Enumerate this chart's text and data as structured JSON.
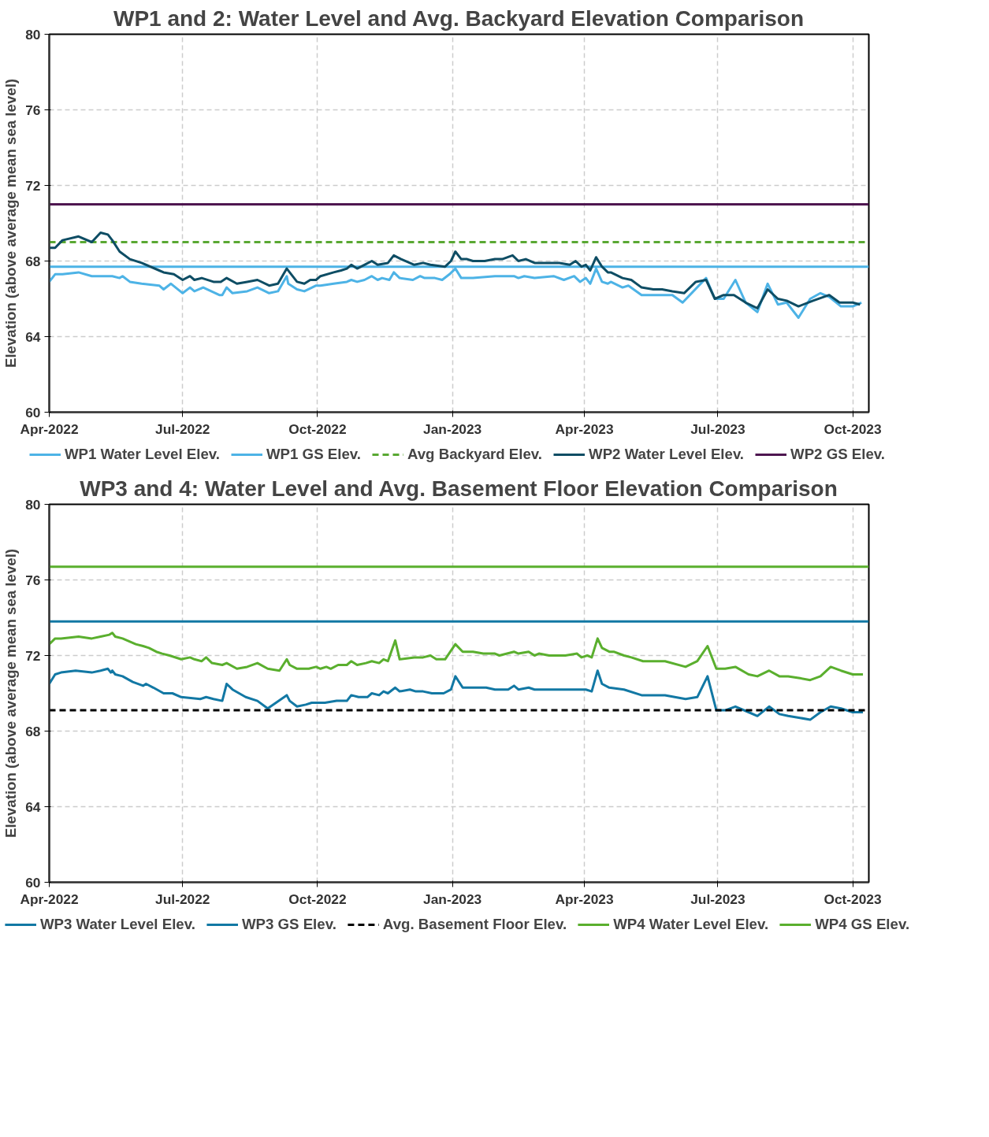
{
  "chart_data": [
    {
      "type": "line",
      "title": "WP1 and 2: Water Level and Avg. Backyard Elevation Comparison",
      "ylabel": "Elevation (above average mean sea level)",
      "xlim": [
        "2022-04-01",
        "2023-10-12"
      ],
      "ylim": [
        60,
        80
      ],
      "yticks": [
        60,
        64,
        68,
        72,
        76,
        80
      ],
      "xticks": [
        {
          "value": "2022-04-01",
          "label": "Apr-2022"
        },
        {
          "value": "2022-07-01",
          "label": "Jul-2022"
        },
        {
          "value": "2022-10-01",
          "label": "Oct-2022"
        },
        {
          "value": "2023-01-01",
          "label": "Jan-2023"
        },
        {
          "value": "2023-04-01",
          "label": "Apr-2023"
        },
        {
          "value": "2023-07-01",
          "label": "Jul-2023"
        },
        {
          "value": "2023-10-01",
          "label": "Oct-2023"
        }
      ],
      "grid": true,
      "legend": "bottom",
      "marker": "none",
      "line_style": "solid",
      "series": [
        {
          "name": "WP1 Water Level Elev.",
          "color": "#4db3e6",
          "x": [
            "2022-04-01",
            "2022-04-05",
            "2022-04-10",
            "2022-04-21",
            "2022-04-30",
            "2022-05-11",
            "2022-05-14",
            "2022-05-19",
            "2022-05-21",
            "2022-05-26",
            "2022-06-03",
            "2022-06-15",
            "2022-06-18",
            "2022-06-23",
            "2022-07-01",
            "2022-07-06",
            "2022-07-09",
            "2022-07-15",
            "2022-07-26",
            "2022-07-28",
            "2022-07-31",
            "2022-08-04",
            "2022-08-14",
            "2022-08-21",
            "2022-08-29",
            "2022-09-04",
            "2022-09-10",
            "2022-09-11",
            "2022-09-17",
            "2022-09-22",
            "2022-09-30",
            "2022-10-03",
            "2022-10-12",
            "2022-10-21",
            "2022-10-24",
            "2022-10-28",
            "2022-11-02",
            "2022-11-07",
            "2022-11-11",
            "2022-11-14",
            "2022-11-19",
            "2022-11-22",
            "2022-11-26",
            "2022-12-05",
            "2022-12-10",
            "2022-12-13",
            "2022-12-20",
            "2022-12-25",
            "2022-12-30",
            "2023-01-03",
            "2023-01-07",
            "2023-01-15",
            "2023-01-30",
            "2023-02-07",
            "2023-02-12",
            "2023-02-15",
            "2023-02-19",
            "2023-02-26",
            "2023-03-11",
            "2023-03-18",
            "2023-03-25",
            "2023-03-29",
            "2023-04-02",
            "2023-04-05",
            "2023-04-09",
            "2023-04-13",
            "2023-04-17",
            "2023-04-19",
            "2023-04-27",
            "2023-05-01",
            "2023-05-10",
            "2023-05-24",
            "2023-05-31",
            "2023-06-07",
            "2023-06-23",
            "2023-06-29",
            "2023-07-05",
            "2023-07-13",
            "2023-07-20",
            "2023-07-28",
            "2023-08-04",
            "2023-08-11",
            "2023-08-17",
            "2023-08-25",
            "2023-09-02",
            "2023-09-09",
            "2023-09-15",
            "2023-09-23",
            "2023-10-01",
            "2023-10-07"
          ],
          "values": [
            66.9,
            67.3,
            67.3,
            67.4,
            67.2,
            67.2,
            67.2,
            67.1,
            67.2,
            66.9,
            66.8,
            66.7,
            66.5,
            66.8,
            66.3,
            66.6,
            66.4,
            66.6,
            66.2,
            66.2,
            66.6,
            66.3,
            66.4,
            66.6,
            66.3,
            66.4,
            67.2,
            66.8,
            66.5,
            66.4,
            66.7,
            66.7,
            66.8,
            66.9,
            67.0,
            66.9,
            67.0,
            67.2,
            67.0,
            67.1,
            67.0,
            67.4,
            67.1,
            67.0,
            67.2,
            67.1,
            67.1,
            67.0,
            67.3,
            67.6,
            67.1,
            67.1,
            67.2,
            67.2,
            67.2,
            67.1,
            67.2,
            67.1,
            67.2,
            67.0,
            67.2,
            66.9,
            67.1,
            66.8,
            67.6,
            66.9,
            66.8,
            66.9,
            66.6,
            66.7,
            66.2,
            66.2,
            66.2,
            65.8,
            67.1,
            66.0,
            66.0,
            67.0,
            65.8,
            65.3,
            66.8,
            65.7,
            65.8,
            65.0,
            66.0,
            66.3,
            66.1,
            65.6,
            65.6,
            65.8
          ]
        },
        {
          "name": "WP1 GS Elev.",
          "color": "#4db3e6",
          "x": [
            "2022-04-01",
            "2023-10-12"
          ],
          "values": [
            67.7,
            67.7
          ]
        },
        {
          "name": "Avg Backyard Elev.",
          "color": "#59a832",
          "line_style": "dashed",
          "x": [
            "2022-04-01",
            "2023-10-12"
          ],
          "values": [
            69.0,
            69.0
          ]
        },
        {
          "name": "WP2 Water Level Elev.",
          "color": "#0e4d64",
          "x": [
            "2022-04-01",
            "2022-04-05",
            "2022-04-10",
            "2022-04-21",
            "2022-04-30",
            "2022-05-06",
            "2022-05-11",
            "2022-05-14",
            "2022-05-19",
            "2022-05-26",
            "2022-06-03",
            "2022-06-15",
            "2022-06-18",
            "2022-06-25",
            "2022-07-01",
            "2022-07-06",
            "2022-07-09",
            "2022-07-14",
            "2022-07-22",
            "2022-07-27",
            "2022-07-31",
            "2022-08-07",
            "2022-08-14",
            "2022-08-21",
            "2022-08-29",
            "2022-09-04",
            "2022-09-10",
            "2022-09-17",
            "2022-09-22",
            "2022-09-26",
            "2022-09-30",
            "2022-10-03",
            "2022-10-12",
            "2022-10-17",
            "2022-10-21",
            "2022-10-24",
            "2022-10-28",
            "2022-11-02",
            "2022-11-07",
            "2022-11-11",
            "2022-11-18",
            "2022-11-22",
            "2022-11-27",
            "2022-12-06",
            "2022-12-12",
            "2022-12-17",
            "2022-12-27",
            "2022-12-31",
            "2023-01-03",
            "2023-01-07",
            "2023-01-11",
            "2023-01-15",
            "2023-01-23",
            "2023-01-30",
            "2023-02-04",
            "2023-02-11",
            "2023-02-15",
            "2023-02-20",
            "2023-02-26",
            "2023-03-10",
            "2023-03-15",
            "2023-03-22",
            "2023-03-26",
            "2023-03-30",
            "2023-04-02",
            "2023-04-05",
            "2023-04-09",
            "2023-04-13",
            "2023-04-17",
            "2023-04-19",
            "2023-04-27",
            "2023-05-03",
            "2023-05-10",
            "2023-05-18",
            "2023-05-24",
            "2023-05-31",
            "2023-06-08",
            "2023-06-16",
            "2023-06-23",
            "2023-06-29",
            "2023-07-05",
            "2023-07-12",
            "2023-07-20",
            "2023-07-28",
            "2023-08-04",
            "2023-08-11",
            "2023-08-17",
            "2023-08-25",
            "2023-09-04",
            "2023-09-15",
            "2023-09-22",
            "2023-10-01",
            "2023-10-06"
          ],
          "values": [
            68.7,
            68.7,
            69.1,
            69.3,
            69.0,
            69.5,
            69.4,
            69.1,
            68.5,
            68.1,
            67.9,
            67.5,
            67.4,
            67.3,
            67.0,
            67.2,
            67.0,
            67.1,
            66.9,
            66.9,
            67.1,
            66.8,
            66.9,
            67.0,
            66.7,
            66.8,
            67.6,
            66.9,
            66.8,
            67.0,
            67.0,
            67.2,
            67.4,
            67.5,
            67.6,
            67.8,
            67.6,
            67.8,
            68.0,
            67.8,
            67.9,
            68.3,
            68.1,
            67.8,
            67.9,
            67.8,
            67.7,
            68.0,
            68.5,
            68.1,
            68.1,
            68.0,
            68.0,
            68.1,
            68.1,
            68.3,
            68.0,
            68.1,
            67.9,
            67.9,
            67.9,
            67.8,
            68.0,
            67.7,
            67.8,
            67.5,
            68.2,
            67.7,
            67.4,
            67.4,
            67.1,
            67.0,
            66.6,
            66.5,
            66.5,
            66.4,
            66.3,
            66.9,
            67.0,
            66.0,
            66.2,
            66.2,
            65.8,
            65.5,
            66.5,
            66.0,
            65.9,
            65.6,
            65.9,
            66.2,
            65.8,
            65.8,
            65.7
          ]
        },
        {
          "name": "WP2 GS Elev.",
          "color": "#4e1650",
          "x": [
            "2022-04-01",
            "2023-10-12"
          ],
          "values": [
            71.0,
            71.0
          ]
        }
      ]
    },
    {
      "type": "line",
      "title": "WP3 and 4: Water Level and Avg. Basement Floor Elevation Comparison",
      "ylabel": "Elevation (above average mean sea level)",
      "xlim": [
        "2022-04-01",
        "2023-10-12"
      ],
      "ylim": [
        60,
        80
      ],
      "yticks": [
        60,
        64,
        68,
        72,
        76,
        80
      ],
      "xticks": [
        {
          "value": "2022-04-01",
          "label": "Apr-2022"
        },
        {
          "value": "2022-07-01",
          "label": "Jul-2022"
        },
        {
          "value": "2022-10-01",
          "label": "Oct-2022"
        },
        {
          "value": "2023-01-01",
          "label": "Jan-2023"
        },
        {
          "value": "2023-04-01",
          "label": "Apr-2023"
        },
        {
          "value": "2023-07-01",
          "label": "Jul-2023"
        },
        {
          "value": "2023-10-01",
          "label": "Oct-2023"
        }
      ],
      "grid": true,
      "legend": "bottom",
      "marker": "none",
      "line_style": "solid",
      "series": [
        {
          "name": "WP3 Water Level Elev.",
          "color": "#1278a4",
          "x": [
            "2022-04-01",
            "2022-04-05",
            "2022-04-09",
            "2022-04-19",
            "2022-04-30",
            "2022-05-06",
            "2022-05-11",
            "2022-05-13",
            "2022-05-14",
            "2022-05-16",
            "2022-05-21",
            "2022-05-28",
            "2022-06-04",
            "2022-06-06",
            "2022-06-11",
            "2022-06-18",
            "2022-06-24",
            "2022-06-30",
            "2022-07-13",
            "2022-07-17",
            "2022-07-22",
            "2022-07-28",
            "2022-07-31",
            "2022-08-04",
            "2022-08-13",
            "2022-08-21",
            "2022-08-28",
            "2022-09-10",
            "2022-09-12",
            "2022-09-17",
            "2022-09-23",
            "2022-09-27",
            "2022-10-06",
            "2022-10-14",
            "2022-10-21",
            "2022-10-24",
            "2022-10-29",
            "2022-11-04",
            "2022-11-07",
            "2022-11-12",
            "2022-11-15",
            "2022-11-18",
            "2022-11-23",
            "2022-11-26",
            "2022-12-03",
            "2022-12-07",
            "2022-12-12",
            "2022-12-18",
            "2022-12-26",
            "2022-12-31",
            "2023-01-03",
            "2023-01-08",
            "2023-01-15",
            "2023-01-24",
            "2023-01-30",
            "2023-02-08",
            "2023-02-12",
            "2023-02-15",
            "2023-02-22",
            "2023-02-26",
            "2023-03-05",
            "2023-03-20",
            "2023-04-02",
            "2023-04-06",
            "2023-04-10",
            "2023-04-13",
            "2023-04-18",
            "2023-04-28",
            "2023-05-10",
            "2023-05-19",
            "2023-05-26",
            "2023-06-09",
            "2023-06-17",
            "2023-06-24",
            "2023-06-30",
            "2023-07-06",
            "2023-07-13",
            "2023-07-22",
            "2023-07-28",
            "2023-08-05",
            "2023-08-12",
            "2023-08-18",
            "2023-08-26",
            "2023-09-02",
            "2023-09-09",
            "2023-09-16",
            "2023-09-23",
            "2023-10-01",
            "2023-10-08"
          ],
          "values": [
            70.5,
            71.0,
            71.1,
            71.2,
            71.1,
            71.2,
            71.3,
            71.1,
            71.2,
            71.0,
            70.9,
            70.6,
            70.4,
            70.5,
            70.3,
            70.0,
            70.0,
            69.8,
            69.7,
            69.8,
            69.7,
            69.6,
            70.5,
            70.2,
            69.8,
            69.6,
            69.2,
            69.9,
            69.6,
            69.3,
            69.4,
            69.5,
            69.5,
            69.6,
            69.6,
            69.9,
            69.8,
            69.8,
            70.0,
            69.9,
            70.1,
            70.0,
            70.3,
            70.1,
            70.2,
            70.1,
            70.1,
            70.0,
            70.0,
            70.2,
            70.9,
            70.3,
            70.3,
            70.3,
            70.2,
            70.2,
            70.4,
            70.2,
            70.3,
            70.2,
            70.2,
            70.2,
            70.2,
            70.1,
            71.2,
            70.5,
            70.3,
            70.2,
            69.9,
            69.9,
            69.9,
            69.7,
            69.8,
            70.9,
            69.1,
            69.1,
            69.3,
            69.0,
            68.8,
            69.3,
            68.9,
            68.8,
            68.7,
            68.6,
            69.0,
            69.3,
            69.2,
            69.0,
            69.0
          ]
        },
        {
          "name": "WP3 GS Elev.",
          "color": "#1278a4",
          "x": [
            "2022-04-01",
            "2023-10-12"
          ],
          "values": [
            73.8,
            73.8
          ]
        },
        {
          "name": "Avg. Basement Floor Elev.",
          "color": "#000000",
          "line_style": "dashed",
          "x": [
            "2022-04-01",
            "2023-10-12"
          ],
          "values": [
            69.1,
            69.1
          ]
        },
        {
          "name": "WP4 Water Level Elev.",
          "color": "#5aaf2e",
          "x": [
            "2022-04-01",
            "2022-04-05",
            "2022-04-09",
            "2022-04-21",
            "2022-04-30",
            "2022-05-06",
            "2022-05-12",
            "2022-05-14",
            "2022-05-16",
            "2022-05-21",
            "2022-05-30",
            "2022-06-04",
            "2022-06-08",
            "2022-06-13",
            "2022-06-17",
            "2022-06-22",
            "2022-06-30",
            "2022-07-06",
            "2022-07-09",
            "2022-07-14",
            "2022-07-17",
            "2022-07-21",
            "2022-07-28",
            "2022-07-31",
            "2022-08-07",
            "2022-08-14",
            "2022-08-21",
            "2022-08-28",
            "2022-09-05",
            "2022-09-10",
            "2022-09-12",
            "2022-09-17",
            "2022-09-25",
            "2022-09-30",
            "2022-10-03",
            "2022-10-07",
            "2022-10-10",
            "2022-10-15",
            "2022-10-21",
            "2022-10-24",
            "2022-10-28",
            "2022-11-03",
            "2022-11-07",
            "2022-11-12",
            "2022-11-15",
            "2022-11-18",
            "2022-11-23",
            "2022-11-26",
            "2022-12-06",
            "2022-12-12",
            "2022-12-17",
            "2022-12-21",
            "2022-12-27",
            "2023-01-03",
            "2023-01-08",
            "2023-01-15",
            "2023-01-22",
            "2023-01-30",
            "2023-02-02",
            "2023-02-12",
            "2023-02-15",
            "2023-02-22",
            "2023-02-26",
            "2023-03-01",
            "2023-03-08",
            "2023-03-19",
            "2023-03-27",
            "2023-03-30",
            "2023-04-03",
            "2023-04-06",
            "2023-04-10",
            "2023-04-13",
            "2023-04-18",
            "2023-04-21",
            "2023-04-28",
            "2023-05-03",
            "2023-05-11",
            "2023-05-19",
            "2023-05-26",
            "2023-06-09",
            "2023-06-17",
            "2023-06-24",
            "2023-06-30",
            "2023-07-06",
            "2023-07-13",
            "2023-07-22",
            "2023-07-28",
            "2023-08-05",
            "2023-08-12",
            "2023-08-18",
            "2023-08-26",
            "2023-09-02",
            "2023-09-09",
            "2023-09-16",
            "2023-09-23",
            "2023-10-01",
            "2023-10-08"
          ],
          "values": [
            72.6,
            72.9,
            72.9,
            73.0,
            72.9,
            73.0,
            73.1,
            73.2,
            73.0,
            72.9,
            72.6,
            72.5,
            72.4,
            72.2,
            72.1,
            72.0,
            71.8,
            71.9,
            71.8,
            71.7,
            71.9,
            71.6,
            71.5,
            71.6,
            71.3,
            71.4,
            71.6,
            71.3,
            71.2,
            71.8,
            71.5,
            71.3,
            71.3,
            71.4,
            71.3,
            71.4,
            71.3,
            71.5,
            71.5,
            71.7,
            71.5,
            71.6,
            71.7,
            71.6,
            71.8,
            71.7,
            72.8,
            71.8,
            71.9,
            71.9,
            72.0,
            71.8,
            71.8,
            72.6,
            72.2,
            72.2,
            72.1,
            72.1,
            72.0,
            72.2,
            72.1,
            72.2,
            72.0,
            72.1,
            72.0,
            72.0,
            72.1,
            71.9,
            72.0,
            71.9,
            72.9,
            72.4,
            72.2,
            72.2,
            72.0,
            71.9,
            71.7,
            71.7,
            71.7,
            71.4,
            71.7,
            72.5,
            71.3,
            71.3,
            71.4,
            71.0,
            70.9,
            71.2,
            70.9,
            70.9,
            70.8,
            70.7,
            70.9,
            71.4,
            71.2,
            71.0,
            71.0
          ]
        },
        {
          "name": "WP4 GS Elev.",
          "color": "#5aaf2e",
          "x": [
            "2022-04-01",
            "2023-10-12"
          ],
          "values": [
            76.7,
            76.7
          ]
        }
      ]
    }
  ]
}
